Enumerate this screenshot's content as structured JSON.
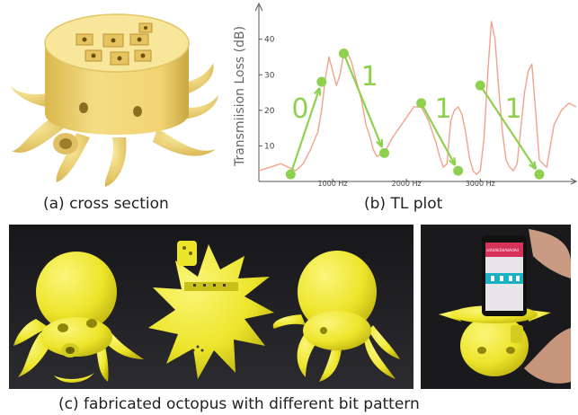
{
  "captions": {
    "a": "(a) cross section",
    "b": "(b) TL plot",
    "c": "(c) fabricated octopus with different bit pattern"
  },
  "phone_screen": {
    "title": "scKdAbDdAdAdAd"
  },
  "colors": {
    "octopus_yellow": "#f2ea3a",
    "cross_section_yellow": "#f3de7c",
    "curve": "#f2a38c",
    "marker": "#8fd14f",
    "photo_bg": "#1c1c1f",
    "phone_header": "#d9325a",
    "phone_bar": "#1bb3c3"
  },
  "chart_data": {
    "type": "line",
    "title": "",
    "xlabel": "",
    "ylabel": "Transmiision Loss (dB)",
    "xlim": [
      0,
      4300
    ],
    "ylim": [
      0,
      48
    ],
    "x_ticks": [
      {
        "value": 1000,
        "label": "1000 Hz"
      },
      {
        "value": 2000,
        "label": "2000 Hz"
      },
      {
        "value": 3000,
        "label": "3000 Hz"
      }
    ],
    "y_ticks": [
      10,
      20,
      30,
      40
    ],
    "series": [
      {
        "x": [
          0,
          150,
          300,
          400,
          500,
          600,
          700,
          800,
          850,
          900,
          950,
          1000,
          1050,
          1100,
          1150,
          1200,
          1250,
          1300,
          1350,
          1400,
          1450,
          1500,
          1550,
          1600,
          1700,
          1800,
          1900,
          2000,
          2100,
          2200,
          2300,
          2400,
          2450,
          2500,
          2550,
          2600,
          2650,
          2700,
          2750,
          2800,
          2850,
          2900,
          2950,
          3000,
          3050,
          3100,
          3150,
          3200,
          3250,
          3300,
          3350,
          3400,
          3450,
          3500,
          3550,
          3600,
          3650,
          3700,
          3750,
          3800,
          3850,
          3900,
          3950,
          4000,
          4100,
          4200,
          4300
        ],
        "y": [
          3,
          4,
          5,
          4,
          3,
          5,
          9,
          14,
          20,
          29,
          35,
          31,
          27,
          30,
          36,
          36,
          34,
          30,
          26,
          22,
          16,
          13,
          9,
          7,
          8,
          12,
          15,
          18,
          21,
          21,
          17,
          11,
          7,
          4,
          5,
          17,
          20,
          21,
          19,
          14,
          7,
          3,
          2,
          3,
          12,
          30,
          45,
          40,
          26,
          14,
          6,
          4,
          3,
          5,
          15,
          25,
          31,
          33,
          20,
          6,
          5,
          4,
          10,
          16,
          20,
          22,
          21
        ]
      }
    ],
    "markers": [
      {
        "x": 430,
        "y": 2
      },
      {
        "x": 850,
        "y": 28
      },
      {
        "x": 1150,
        "y": 36
      },
      {
        "x": 1700,
        "y": 8
      },
      {
        "x": 2200,
        "y": 22
      },
      {
        "x": 2700,
        "y": 3
      },
      {
        "x": 3000,
        "y": 27
      },
      {
        "x": 3800,
        "y": 2
      }
    ],
    "arrows": [
      {
        "from": 0,
        "to": 1
      },
      {
        "from": 2,
        "to": 3
      },
      {
        "from": 4,
        "to": 5
      },
      {
        "from": 6,
        "to": 7
      }
    ],
    "annotations": [
      {
        "text": "0",
        "x": 560,
        "y": 18
      },
      {
        "text": "1",
        "x": 1500,
        "y": 27
      },
      {
        "text": "1",
        "x": 2500,
        "y": 18
      },
      {
        "text": "1",
        "x": 3450,
        "y": 18
      }
    ]
  }
}
